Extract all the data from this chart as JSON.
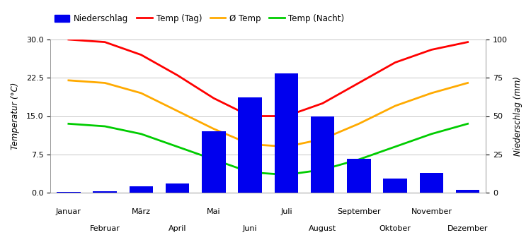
{
  "months": [
    "Januar",
    "Februar",
    "März",
    "April",
    "Mai",
    "Juni",
    "Juli",
    "August",
    "September",
    "Oktober",
    "November",
    "Dezember"
  ],
  "precipitation": [
    0.5,
    1.0,
    4.0,
    6.0,
    40.0,
    62.0,
    78.0,
    50.0,
    22.0,
    9.0,
    13.0,
    2.0
  ],
  "temp_day": [
    30.0,
    29.5,
    27.0,
    23.0,
    18.5,
    15.0,
    15.0,
    17.5,
    21.5,
    25.5,
    28.0,
    29.5
  ],
  "temp_avg": [
    22.0,
    21.5,
    19.5,
    16.0,
    12.5,
    9.5,
    9.0,
    10.5,
    13.5,
    17.0,
    19.5,
    21.5
  ],
  "temp_night": [
    13.5,
    13.0,
    11.5,
    9.0,
    6.5,
    4.0,
    3.5,
    4.5,
    6.5,
    9.0,
    11.5,
    13.5
  ],
  "bar_color": "#0000ee",
  "line_day_color": "#ff0000",
  "line_avg_color": "#ffaa00",
  "line_night_color": "#00cc00",
  "ylabel_left": "Temperatur (°C)",
  "ylabel_right": "Niederschlag (mm)",
  "ylim_left": [
    0.0,
    30.0
  ],
  "ylim_right": [
    0,
    100
  ],
  "yticks_left": [
    0.0,
    7.5,
    15.0,
    22.5,
    30.0
  ],
  "yticks_right": [
    0,
    25,
    50,
    75,
    100
  ],
  "legend_labels": [
    "Niederschlag",
    "Temp (Tag)",
    "Ø Temp",
    "Temp (Nacht)"
  ],
  "background_color": "#ffffff",
  "grid_color": "#bbbbbb"
}
